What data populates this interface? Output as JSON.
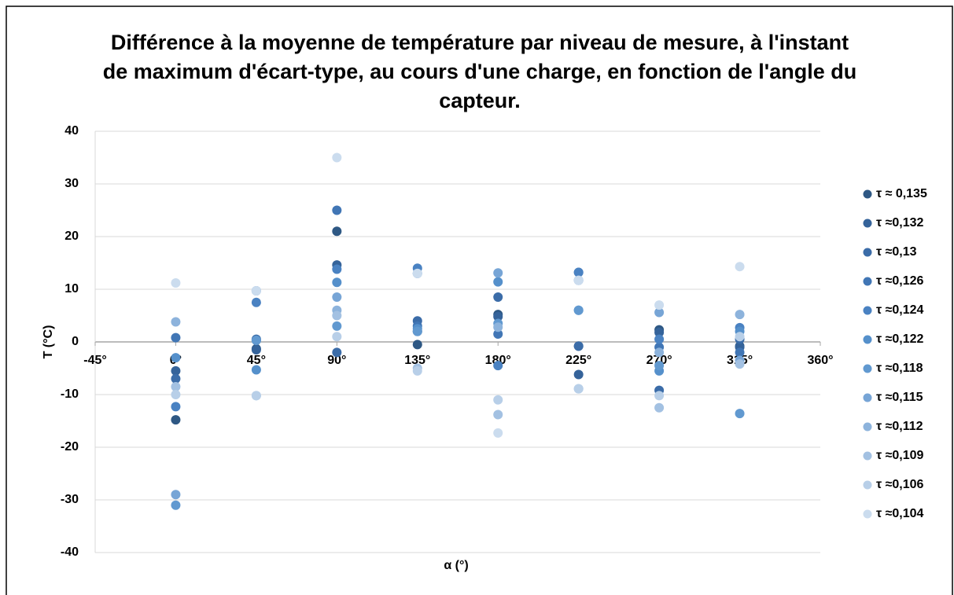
{
  "chart_data": {
    "type": "scatter",
    "title": "Différence à la moyenne de température par niveau de mesure, à l'instant de maximum d'écart-type, au cours d'une charge, en fonction de l'angle du capteur.",
    "x_label": "α (°)",
    "y_label": "T (°C)",
    "x": [
      0,
      45,
      90,
      135,
      180,
      225,
      270,
      315
    ],
    "xlim": [
      -45,
      360
    ],
    "xticks": [
      {
        "value": -45,
        "label": "-45°"
      },
      {
        "value": 0,
        "label": "0°"
      },
      {
        "value": 45,
        "label": "45°"
      },
      {
        "value": 90,
        "label": "90°"
      },
      {
        "value": 135,
        "label": "135°"
      },
      {
        "value": 180,
        "label": "180°"
      },
      {
        "value": 225,
        "label": "225°"
      },
      {
        "value": 270,
        "label": "270°"
      },
      {
        "value": 315,
        "label": "315°"
      },
      {
        "value": 360,
        "label": "360°"
      }
    ],
    "ylim": [
      -40,
      40
    ],
    "yticks": [
      -40,
      -30,
      -20,
      -10,
      0,
      10,
      20,
      30,
      40
    ],
    "grid": true,
    "legend": "right",
    "series": [
      {
        "name": "τ ≈ 0,135",
        "color": "#2e5884",
        "values": [
          -14.8,
          -1.3,
          21,
          -0.5,
          5.2,
          -0.8,
          2.3,
          -0.8
        ]
      },
      {
        "name": "τ  ≈0,132",
        "color": "#35639a",
        "values": [
          -5.5,
          -1.5,
          14.6,
          2,
          4.8,
          -6.2,
          1.8,
          -1
        ]
      },
      {
        "name": "τ  ≈0,13",
        "color": "#3b6ca8",
        "values": [
          -7,
          0.5,
          -2,
          4,
          8.5,
          -0.8,
          -9.2,
          0.5
        ]
      },
      {
        "name": "τ  ≈0,126",
        "color": "#4176b5",
        "values": [
          0.8,
          0.3,
          25,
          3,
          1.5,
          13.2,
          -1,
          -2
        ]
      },
      {
        "name": "τ  ≈0,124",
        "color": "#4a82c2",
        "values": [
          -12.3,
          7.5,
          13.8,
          14,
          -4.5,
          13.2,
          0.5,
          2.7
        ]
      },
      {
        "name": "τ  ≈0,122",
        "color": "#5590cb",
        "values": [
          -3,
          -5.3,
          11.3,
          2.5,
          11.4,
          6,
          -5.5,
          2
        ]
      },
      {
        "name": "τ  ≈0,118",
        "color": "#6199d0",
        "values": [
          -31,
          0.3,
          3,
          2,
          3.5,
          6,
          -4.5,
          -13.6
        ]
      },
      {
        "name": "τ  ≈0,115",
        "color": "#77a5d6",
        "values": [
          -29,
          9.7,
          8.5,
          13,
          13.1,
          11.7,
          5.6,
          -3.5
        ]
      },
      {
        "name": "τ  ≈0,112",
        "color": "#8db3dc",
        "values": [
          3.8,
          9.7,
          6,
          13,
          2.8,
          11.7,
          -2,
          5.2
        ]
      },
      {
        "name": "τ  ≈0,109",
        "color": "#a3c1e2",
        "values": [
          -8.5,
          -10.2,
          5,
          -5,
          -13.8,
          -8.9,
          -12.5,
          -4.2
        ]
      },
      {
        "name": "τ  ≈0,106",
        "color": "#b8cfe8",
        "values": [
          -10,
          -10.2,
          1,
          -5.5,
          -11,
          -8.9,
          -10.2,
          1
        ]
      },
      {
        "name": "τ  ≈0,104",
        "color": "#cbdcee",
        "values": [
          11.2,
          9.7,
          35,
          13,
          -17.3,
          11.7,
          7,
          14.3
        ]
      }
    ]
  }
}
